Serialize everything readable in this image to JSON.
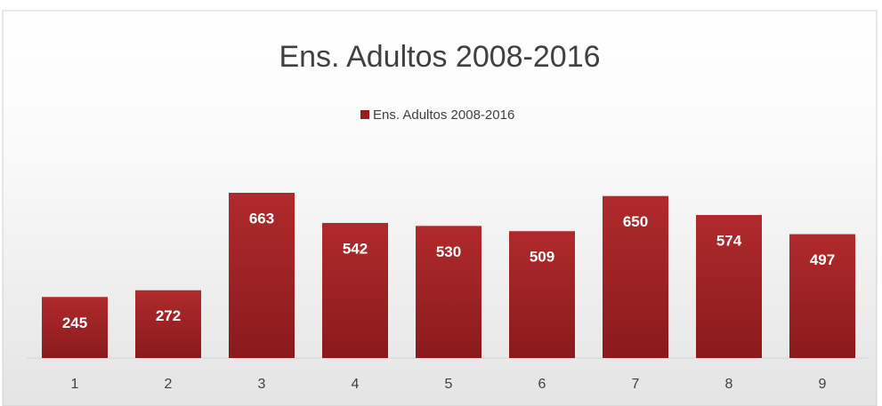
{
  "chart_data": {
    "type": "bar",
    "title": "Ens. Adultos 2008-2016",
    "categories": [
      "1",
      "2",
      "3",
      "4",
      "5",
      "6",
      "7",
      "8",
      "9"
    ],
    "series": [
      {
        "name": "Ens. Adultos 2008-2016",
        "color": "#9b1c1f",
        "values": [
          245,
          272,
          663,
          542,
          530,
          509,
          650,
          574,
          497
        ]
      }
    ],
    "legend": "top",
    "data_labels": true
  }
}
